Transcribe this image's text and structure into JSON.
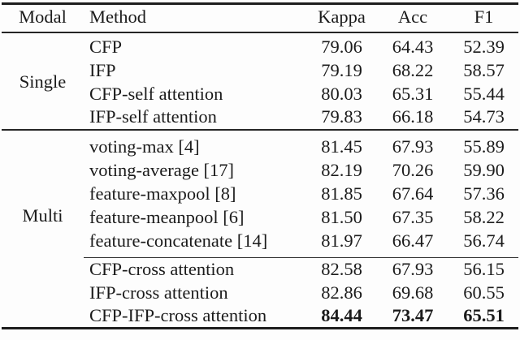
{
  "colors": {
    "background": "#fdfdfd",
    "text": "#1b1b1b",
    "rule": "#1d1d1d"
  },
  "table": {
    "header": {
      "modal": "Modal",
      "method": "Method",
      "kappa": "Kappa",
      "acc": "Acc",
      "f1": "F1"
    },
    "single": {
      "label": "Single",
      "rows": [
        {
          "method": "CFP",
          "kappa": "79.06",
          "acc": "64.43",
          "f1": "52.39"
        },
        {
          "method": "IFP",
          "kappa": "79.19",
          "acc": "68.22",
          "f1": "58.57"
        },
        {
          "method": "CFP-self attention",
          "kappa": "80.03",
          "acc": "65.31",
          "f1": "55.44"
        },
        {
          "method": "IFP-self attention",
          "kappa": "79.83",
          "acc": "66.18",
          "f1": "54.73"
        }
      ]
    },
    "multi": {
      "label": "Multi",
      "fusion_rows": [
        {
          "method": "voting-max [4]",
          "kappa": "81.45",
          "acc": "67.93",
          "f1": "55.89"
        },
        {
          "method": "voting-average [17]",
          "kappa": "82.19",
          "acc": "70.26",
          "f1": "59.90"
        },
        {
          "method": "feature-maxpool [8]",
          "kappa": "81.85",
          "acc": "67.64",
          "f1": "57.36"
        },
        {
          "method": "feature-meanpool [6]",
          "kappa": "81.50",
          "acc": "67.35",
          "f1": "58.22"
        },
        {
          "method": "feature-concatenate [14]",
          "kappa": "81.97",
          "acc": "66.47",
          "f1": "56.74"
        }
      ],
      "cross_rows": [
        {
          "method": "CFP-cross attention",
          "kappa": "82.58",
          "acc": "67.93",
          "f1": "56.15"
        },
        {
          "method": "IFP-cross attention",
          "kappa": "82.86",
          "acc": "69.68",
          "f1": "60.55"
        },
        {
          "method": "CFP-IFP-cross attention",
          "kappa": "84.44",
          "acc": "73.47",
          "f1": "65.51"
        }
      ]
    }
  }
}
